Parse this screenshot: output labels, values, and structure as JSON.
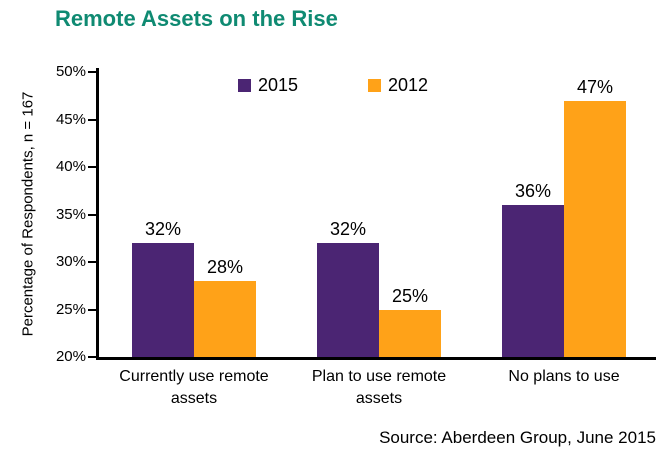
{
  "title": "Remote Assets on the Rise",
  "source": "Source: Aberdeen Group, June 2015",
  "colors": {
    "title": "#0F8A72",
    "axis": "#000000",
    "series_2015": "#4B2573",
    "series_2012": "#FFA218"
  },
  "chart_data": {
    "type": "bar",
    "title": "Remote Assets on the Rise",
    "ylabel": "Percentage of Respondents, n = 167",
    "xlabel": "",
    "categories": [
      "Currently use remote assets",
      "Plan to use remote assets",
      "No plans to use"
    ],
    "series": [
      {
        "name": "2015",
        "color": "#4B2573",
        "values": [
          32,
          32,
          36
        ]
      },
      {
        "name": "2012",
        "color": "#FFA218",
        "values": [
          28,
          25,
          47
        ]
      }
    ],
    "data_label_suffix": "%",
    "ylim": [
      20,
      50
    ],
    "ytick_step": 5,
    "ytick_labels": [
      "20%",
      "25%",
      "30%",
      "35%",
      "40%",
      "45%",
      "50%"
    ],
    "grid": false,
    "legend_position": "top-center",
    "legend_entries": [
      "2015",
      "2012"
    ]
  }
}
